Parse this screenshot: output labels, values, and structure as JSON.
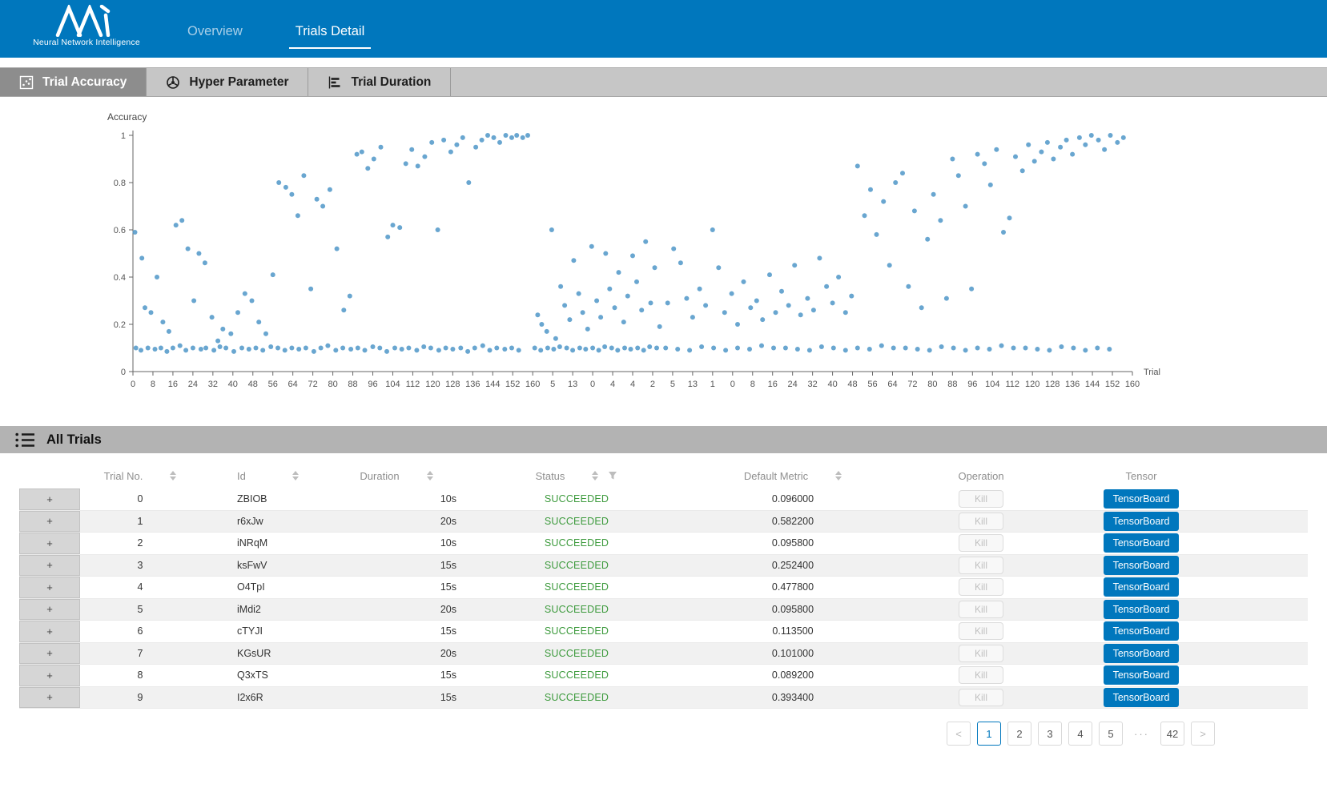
{
  "colors": {
    "accent": "#0077bd",
    "status_succeeded": "#3c9a3c",
    "point": "#4f96c8",
    "tab_active_bg": "#8d8d8d"
  },
  "brand": {
    "logo_caption": "Neural Network Intelligence"
  },
  "nav": {
    "items": [
      {
        "label": "Overview",
        "active": false
      },
      {
        "label": "Trials Detail",
        "active": true
      }
    ]
  },
  "tabs": [
    {
      "label": "Trial Accuracy",
      "active": true
    },
    {
      "label": "Hyper Parameter",
      "active": false
    },
    {
      "label": "Trial Duration",
      "active": false
    }
  ],
  "chart_data": {
    "type": "scatter",
    "title": "",
    "ylabel": "Accuracy",
    "xlabel": "Trial",
    "ylim": [
      0,
      1
    ],
    "yticks": [
      0,
      0.2,
      0.4,
      0.6,
      0.8,
      1
    ],
    "grid": false,
    "legend": false,
    "point_color": "#4f96c8",
    "xtick_labels": [
      "0",
      "8",
      "16",
      "24",
      "32",
      "40",
      "48",
      "56",
      "64",
      "72",
      "80",
      "88",
      "96",
      "104",
      "112",
      "120",
      "128",
      "136",
      "144",
      "152",
      "160",
      "5",
      "13",
      "0",
      "4",
      "4",
      "2",
      "5",
      "13",
      "1",
      "0",
      "8",
      "16",
      "24",
      "32",
      "40",
      "48",
      "56",
      "64",
      "72",
      "80",
      "88",
      "96",
      "104",
      "112",
      "120",
      "128",
      "136",
      "144",
      "152",
      "160"
    ],
    "x_unit": "percent_of_axis",
    "points": [
      [
        0.3,
        0.1
      ],
      [
        0.8,
        0.09
      ],
      [
        1.5,
        0.1
      ],
      [
        2.2,
        0.095
      ],
      [
        2.8,
        0.1
      ],
      [
        3.4,
        0.085
      ],
      [
        4.0,
        0.1
      ],
      [
        4.7,
        0.11
      ],
      [
        5.3,
        0.09
      ],
      [
        6.0,
        0.1
      ],
      [
        6.8,
        0.095
      ],
      [
        7.3,
        0.1
      ],
      [
        8.1,
        0.09
      ],
      [
        8.7,
        0.105
      ],
      [
        9.3,
        0.1
      ],
      [
        10.1,
        0.085
      ],
      [
        10.9,
        0.1
      ],
      [
        11.6,
        0.095
      ],
      [
        12.3,
        0.1
      ],
      [
        13.0,
        0.09
      ],
      [
        13.8,
        0.105
      ],
      [
        14.5,
        0.1
      ],
      [
        15.2,
        0.09
      ],
      [
        15.9,
        0.1
      ],
      [
        16.6,
        0.095
      ],
      [
        17.3,
        0.1
      ],
      [
        18.1,
        0.085
      ],
      [
        18.8,
        0.1
      ],
      [
        19.5,
        0.11
      ],
      [
        20.3,
        0.09
      ],
      [
        21.0,
        0.1
      ],
      [
        21.8,
        0.095
      ],
      [
        22.5,
        0.1
      ],
      [
        23.2,
        0.09
      ],
      [
        24.0,
        0.105
      ],
      [
        24.7,
        0.1
      ],
      [
        25.4,
        0.085
      ],
      [
        26.2,
        0.1
      ],
      [
        26.9,
        0.095
      ],
      [
        27.6,
        0.1
      ],
      [
        28.4,
        0.09
      ],
      [
        29.1,
        0.105
      ],
      [
        29.8,
        0.1
      ],
      [
        30.6,
        0.09
      ],
      [
        31.3,
        0.1
      ],
      [
        32.0,
        0.095
      ],
      [
        32.8,
        0.1
      ],
      [
        33.5,
        0.085
      ],
      [
        34.2,
        0.1
      ],
      [
        35.0,
        0.11
      ],
      [
        35.7,
        0.09
      ],
      [
        36.4,
        0.1
      ],
      [
        37.2,
        0.095
      ],
      [
        37.9,
        0.1
      ],
      [
        38.6,
        0.09
      ],
      [
        0.2,
        0.59
      ],
      [
        0.9,
        0.48
      ],
      [
        1.2,
        0.27
      ],
      [
        1.8,
        0.25
      ],
      [
        2.4,
        0.4
      ],
      [
        3.0,
        0.21
      ],
      [
        3.6,
        0.17
      ],
      [
        4.3,
        0.62
      ],
      [
        4.9,
        0.64
      ],
      [
        5.5,
        0.52
      ],
      [
        6.1,
        0.3
      ],
      [
        6.6,
        0.5
      ],
      [
        7.2,
        0.46
      ],
      [
        7.9,
        0.23
      ],
      [
        8.5,
        0.13
      ],
      [
        9.0,
        0.18
      ],
      [
        9.8,
        0.16
      ],
      [
        10.5,
        0.25
      ],
      [
        11.2,
        0.33
      ],
      [
        11.9,
        0.3
      ],
      [
        12.6,
        0.21
      ],
      [
        13.3,
        0.16
      ],
      [
        14.0,
        0.41
      ],
      [
        14.6,
        0.8
      ],
      [
        15.3,
        0.78
      ],
      [
        15.9,
        0.75
      ],
      [
        16.5,
        0.66
      ],
      [
        17.1,
        0.83
      ],
      [
        17.8,
        0.35
      ],
      [
        18.4,
        0.73
      ],
      [
        19.0,
        0.7
      ],
      [
        19.7,
        0.77
      ],
      [
        20.4,
        0.52
      ],
      [
        21.1,
        0.26
      ],
      [
        21.7,
        0.32
      ],
      [
        22.4,
        0.92
      ],
      [
        22.9,
        0.93
      ],
      [
        23.5,
        0.86
      ],
      [
        24.1,
        0.9
      ],
      [
        24.8,
        0.95
      ],
      [
        25.5,
        0.57
      ],
      [
        26.0,
        0.62
      ],
      [
        26.7,
        0.61
      ],
      [
        27.3,
        0.88
      ],
      [
        27.9,
        0.94
      ],
      [
        28.5,
        0.87
      ],
      [
        29.2,
        0.91
      ],
      [
        29.9,
        0.97
      ],
      [
        30.5,
        0.6
      ],
      [
        31.1,
        0.98
      ],
      [
        31.8,
        0.93
      ],
      [
        32.4,
        0.96
      ],
      [
        33.0,
        0.99
      ],
      [
        33.6,
        0.8
      ],
      [
        34.3,
        0.95
      ],
      [
        34.9,
        0.98
      ],
      [
        35.5,
        1.0
      ],
      [
        36.1,
        0.99
      ],
      [
        36.7,
        0.97
      ],
      [
        37.3,
        1.0
      ],
      [
        37.9,
        0.99
      ],
      [
        38.4,
        1.0
      ],
      [
        39.0,
        0.99
      ],
      [
        39.5,
        1.0
      ],
      [
        40.2,
        0.1
      ],
      [
        40.8,
        0.09
      ],
      [
        41.5,
        0.1
      ],
      [
        42.1,
        0.095
      ],
      [
        42.7,
        0.105
      ],
      [
        43.4,
        0.1
      ],
      [
        44.0,
        0.09
      ],
      [
        44.7,
        0.1
      ],
      [
        45.3,
        0.095
      ],
      [
        46.0,
        0.1
      ],
      [
        46.6,
        0.09
      ],
      [
        47.2,
        0.105
      ],
      [
        47.9,
        0.1
      ],
      [
        48.5,
        0.09
      ],
      [
        49.2,
        0.1
      ],
      [
        49.8,
        0.095
      ],
      [
        50.5,
        0.1
      ],
      [
        51.1,
        0.09
      ],
      [
        51.7,
        0.105
      ],
      [
        52.4,
        0.1
      ],
      [
        40.5,
        0.24
      ],
      [
        40.9,
        0.2
      ],
      [
        41.4,
        0.17
      ],
      [
        41.9,
        0.6
      ],
      [
        42.3,
        0.14
      ],
      [
        42.8,
        0.36
      ],
      [
        43.2,
        0.28
      ],
      [
        43.7,
        0.22
      ],
      [
        44.1,
        0.47
      ],
      [
        44.6,
        0.33
      ],
      [
        45.0,
        0.25
      ],
      [
        45.5,
        0.18
      ],
      [
        45.9,
        0.53
      ],
      [
        46.4,
        0.3
      ],
      [
        46.8,
        0.23
      ],
      [
        47.3,
        0.5
      ],
      [
        47.7,
        0.35
      ],
      [
        48.2,
        0.27
      ],
      [
        48.6,
        0.42
      ],
      [
        49.1,
        0.21
      ],
      [
        49.5,
        0.32
      ],
      [
        50.0,
        0.49
      ],
      [
        50.4,
        0.38
      ],
      [
        50.9,
        0.26
      ],
      [
        51.3,
        0.55
      ],
      [
        51.8,
        0.29
      ],
      [
        52.2,
        0.44
      ],
      [
        52.7,
        0.19
      ],
      [
        53.3,
        0.1
      ],
      [
        54.5,
        0.095
      ],
      [
        55.7,
        0.09
      ],
      [
        56.9,
        0.105
      ],
      [
        58.1,
        0.1
      ],
      [
        59.3,
        0.09
      ],
      [
        60.5,
        0.1
      ],
      [
        61.7,
        0.095
      ],
      [
        62.9,
        0.11
      ],
      [
        64.1,
        0.1
      ],
      [
        65.3,
        0.1
      ],
      [
        66.5,
        0.095
      ],
      [
        67.7,
        0.09
      ],
      [
        68.9,
        0.105
      ],
      [
        70.1,
        0.1
      ],
      [
        71.3,
        0.09
      ],
      [
        72.5,
        0.1
      ],
      [
        73.7,
        0.095
      ],
      [
        74.9,
        0.11
      ],
      [
        76.1,
        0.1
      ],
      [
        77.3,
        0.1
      ],
      [
        78.5,
        0.095
      ],
      [
        79.7,
        0.09
      ],
      [
        80.9,
        0.105
      ],
      [
        82.1,
        0.1
      ],
      [
        83.3,
        0.09
      ],
      [
        84.5,
        0.1
      ],
      [
        85.7,
        0.095
      ],
      [
        86.9,
        0.11
      ],
      [
        88.1,
        0.1
      ],
      [
        89.3,
        0.1
      ],
      [
        90.5,
        0.095
      ],
      [
        91.7,
        0.09
      ],
      [
        92.9,
        0.105
      ],
      [
        94.1,
        0.1
      ],
      [
        95.3,
        0.09
      ],
      [
        96.5,
        0.1
      ],
      [
        97.7,
        0.095
      ],
      [
        53.5,
        0.29
      ],
      [
        54.1,
        0.52
      ],
      [
        54.8,
        0.46
      ],
      [
        55.4,
        0.31
      ],
      [
        56.0,
        0.23
      ],
      [
        56.7,
        0.35
      ],
      [
        57.3,
        0.28
      ],
      [
        58.0,
        0.6
      ],
      [
        58.6,
        0.44
      ],
      [
        59.2,
        0.25
      ],
      [
        59.9,
        0.33
      ],
      [
        60.5,
        0.2
      ],
      [
        61.1,
        0.38
      ],
      [
        61.8,
        0.27
      ],
      [
        62.4,
        0.3
      ],
      [
        63.0,
        0.22
      ],
      [
        63.7,
        0.41
      ],
      [
        64.3,
        0.25
      ],
      [
        64.9,
        0.34
      ],
      [
        65.6,
        0.28
      ],
      [
        66.2,
        0.45
      ],
      [
        66.8,
        0.24
      ],
      [
        67.5,
        0.31
      ],
      [
        68.1,
        0.26
      ],
      [
        68.7,
        0.48
      ],
      [
        69.4,
        0.36
      ],
      [
        70.0,
        0.29
      ],
      [
        70.6,
        0.4
      ],
      [
        71.3,
        0.25
      ],
      [
        71.9,
        0.32
      ],
      [
        72.5,
        0.87
      ],
      [
        73.2,
        0.66
      ],
      [
        73.8,
        0.77
      ],
      [
        74.4,
        0.58
      ],
      [
        75.1,
        0.72
      ],
      [
        75.7,
        0.45
      ],
      [
        76.3,
        0.8
      ],
      [
        77.0,
        0.84
      ],
      [
        77.6,
        0.36
      ],
      [
        78.2,
        0.68
      ],
      [
        78.9,
        0.27
      ],
      [
        79.5,
        0.56
      ],
      [
        80.1,
        0.75
      ],
      [
        80.8,
        0.64
      ],
      [
        81.4,
        0.31
      ],
      [
        82.0,
        0.9
      ],
      [
        82.6,
        0.83
      ],
      [
        83.3,
        0.7
      ],
      [
        83.9,
        0.35
      ],
      [
        84.5,
        0.92
      ],
      [
        85.2,
        0.88
      ],
      [
        85.8,
        0.79
      ],
      [
        86.4,
        0.94
      ],
      [
        87.1,
        0.59
      ],
      [
        87.7,
        0.65
      ],
      [
        88.3,
        0.91
      ],
      [
        89.0,
        0.85
      ],
      [
        89.6,
        0.96
      ],
      [
        90.2,
        0.89
      ],
      [
        90.9,
        0.93
      ],
      [
        91.5,
        0.97
      ],
      [
        92.1,
        0.9
      ],
      [
        92.8,
        0.95
      ],
      [
        93.4,
        0.98
      ],
      [
        94.0,
        0.92
      ],
      [
        94.7,
        0.99
      ],
      [
        95.3,
        0.96
      ],
      [
        95.9,
        1.0
      ],
      [
        96.6,
        0.98
      ],
      [
        97.2,
        0.94
      ],
      [
        97.8,
        1.0
      ],
      [
        98.5,
        0.97
      ],
      [
        99.1,
        0.99
      ]
    ]
  },
  "all_trials": {
    "title": "All Trials"
  },
  "table": {
    "expand_symbol": "+",
    "headers": {
      "trial_no": "Trial No.",
      "id": "Id",
      "duration": "Duration",
      "status": "Status",
      "metric": "Default Metric",
      "operation": "Operation",
      "tensor": "Tensor"
    },
    "kill_label": "Kill",
    "tensorboard_label": "TensorBoard",
    "rows": [
      {
        "no": "0",
        "id": "ZBIOB",
        "duration": "10s",
        "status": "SUCCEEDED",
        "metric": "0.096000"
      },
      {
        "no": "1",
        "id": "r6xJw",
        "duration": "20s",
        "status": "SUCCEEDED",
        "metric": "0.582200"
      },
      {
        "no": "2",
        "id": "iNRqM",
        "duration": "10s",
        "status": "SUCCEEDED",
        "metric": "0.095800"
      },
      {
        "no": "3",
        "id": "ksFwV",
        "duration": "15s",
        "status": "SUCCEEDED",
        "metric": "0.252400"
      },
      {
        "no": "4",
        "id": "O4TpI",
        "duration": "15s",
        "status": "SUCCEEDED",
        "metric": "0.477800"
      },
      {
        "no": "5",
        "id": "iMdi2",
        "duration": "20s",
        "status": "SUCCEEDED",
        "metric": "0.095800"
      },
      {
        "no": "6",
        "id": "cTYJI",
        "duration": "15s",
        "status": "SUCCEEDED",
        "metric": "0.113500"
      },
      {
        "no": "7",
        "id": "KGsUR",
        "duration": "20s",
        "status": "SUCCEEDED",
        "metric": "0.101000"
      },
      {
        "no": "8",
        "id": "Q3xTS",
        "duration": "15s",
        "status": "SUCCEEDED",
        "metric": "0.089200"
      },
      {
        "no": "9",
        "id": "I2x6R",
        "duration": "15s",
        "status": "SUCCEEDED",
        "metric": "0.393400"
      }
    ]
  },
  "pagination": {
    "items": [
      {
        "label": "<",
        "kind": "arrow",
        "name": "prev-page-button"
      },
      {
        "label": "1",
        "kind": "page",
        "active": true
      },
      {
        "label": "2",
        "kind": "page"
      },
      {
        "label": "3",
        "kind": "page"
      },
      {
        "label": "4",
        "kind": "page"
      },
      {
        "label": "5",
        "kind": "page"
      },
      {
        "label": "···",
        "kind": "ellipsis"
      },
      {
        "label": "42",
        "kind": "page"
      },
      {
        "label": ">",
        "kind": "arrow",
        "name": "next-page-button"
      }
    ]
  }
}
